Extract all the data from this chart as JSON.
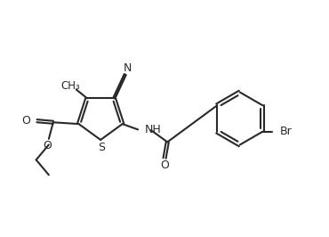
{
  "bg_color": "#ffffff",
  "line_color": "#2a2a2a",
  "line_width": 1.5,
  "font_size": 9.0,
  "dbo": 0.038,
  "xlim": [
    0,
    10
  ],
  "ylim": [
    0,
    7
  ]
}
